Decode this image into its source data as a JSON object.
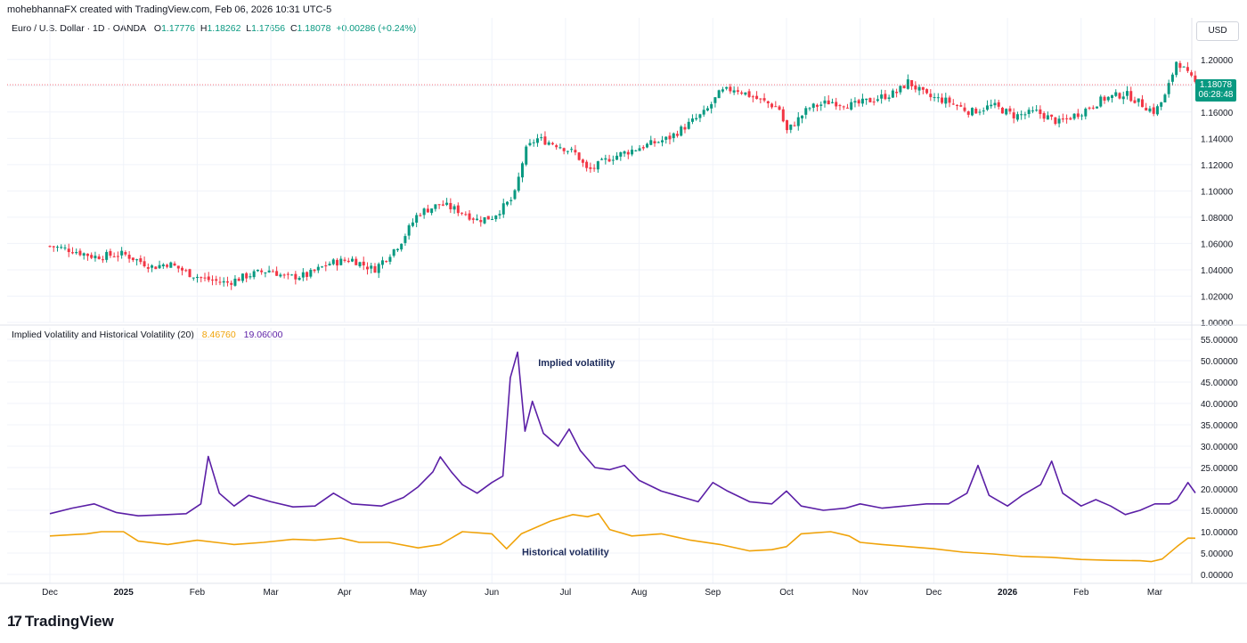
{
  "header": {
    "attribution": "mohebhannaFX created with TradingView.com, Feb 06, 2026 10:31 UTC-5"
  },
  "symbol": {
    "name": "Euro / U.S. Dollar · 1D · OANDA",
    "open_label": "O",
    "open": "1.17776",
    "high_label": "H",
    "high": "1.18262",
    "low_label": "L",
    "low": "1.17656",
    "close_label": "C",
    "close": "1.18078",
    "change": "+0.00286 (+0.24%)"
  },
  "currency_button": "USD",
  "last_price_tag": {
    "price": "1.18078",
    "countdown": "06:28:48"
  },
  "indicator": {
    "name": "Implied Volatility and Historical Volatility (20)",
    "hv_value": "8.46760",
    "iv_value": "19.06000"
  },
  "footer": {
    "brand": "TradingView"
  },
  "colors": {
    "up": "#089981",
    "down": "#f23645",
    "iv": "#5b1fa6",
    "hv": "#f0a30a",
    "grid": "#f0f3fa"
  },
  "chart_data": [
    {
      "type": "candlestick",
      "title": "Euro / U.S. Dollar",
      "ylim": [
        1.0,
        1.21
      ],
      "y_ticks": [
        "1.00000",
        "1.02000",
        "1.04000",
        "1.06000",
        "1.08000",
        "1.10000",
        "1.12000",
        "1.14000",
        "1.16000",
        "1.18000",
        "1.20000"
      ],
      "x_ticks": [
        "Dec",
        "2025",
        "Feb",
        "Mar",
        "Apr",
        "May",
        "Jun",
        "Jul",
        "Aug",
        "Sep",
        "Oct",
        "Nov",
        "Dec",
        "2026",
        "Feb",
        "Mar"
      ],
      "x_tick_months": [
        1,
        2,
        3,
        4,
        5,
        6,
        7,
        8,
        9,
        10,
        11,
        12,
        13,
        14,
        15,
        16
      ],
      "close_path": [
        [
          0.0,
          1.058
        ],
        [
          0.3,
          1.055
        ],
        [
          0.6,
          1.05
        ],
        [
          1.0,
          1.052
        ],
        [
          1.4,
          1.042
        ],
        [
          1.6,
          1.045
        ],
        [
          1.9,
          1.037
        ],
        [
          2.1,
          1.033
        ],
        [
          2.4,
          1.03
        ],
        [
          2.7,
          1.036
        ],
        [
          3.0,
          1.04
        ],
        [
          3.2,
          1.034
        ],
        [
          3.5,
          1.036
        ],
        [
          3.8,
          1.045
        ],
        [
          4.1,
          1.048
        ],
        [
          4.4,
          1.04
        ],
        [
          4.75,
          1.06
        ],
        [
          5.0,
          1.083
        ],
        [
          5.3,
          1.09
        ],
        [
          5.6,
          1.084
        ],
        [
          5.8,
          1.078
        ],
        [
          6.0,
          1.08
        ],
        [
          6.3,
          1.095
        ],
        [
          6.45,
          1.13
        ],
        [
          6.6,
          1.14
        ],
        [
          6.9,
          1.135
        ],
        [
          7.15,
          1.128
        ],
        [
          7.3,
          1.115
        ],
        [
          7.6,
          1.125
        ],
        [
          8.0,
          1.133
        ],
        [
          8.4,
          1.14
        ],
        [
          8.7,
          1.152
        ],
        [
          8.9,
          1.16
        ],
        [
          9.1,
          1.175
        ],
        [
          9.3,
          1.178
        ],
        [
          9.6,
          1.17
        ],
        [
          9.9,
          1.163
        ],
        [
          10.0,
          1.145
        ],
        [
          10.3,
          1.163
        ],
        [
          10.6,
          1.168
        ],
        [
          10.9,
          1.165
        ],
        [
          11.2,
          1.17
        ],
        [
          11.5,
          1.175
        ],
        [
          11.65,
          1.183
        ],
        [
          11.9,
          1.172
        ],
        [
          12.2,
          1.168
        ],
        [
          12.5,
          1.16
        ],
        [
          12.8,
          1.165
        ],
        [
          13.1,
          1.157
        ],
        [
          13.4,
          1.16
        ],
        [
          13.7,
          1.152
        ],
        [
          14.0,
          1.16
        ],
        [
          14.3,
          1.17
        ],
        [
          14.6,
          1.174
        ],
        [
          14.85,
          1.165
        ],
        [
          15.0,
          1.16
        ],
        [
          15.15,
          1.173
        ],
        [
          15.3,
          1.2
        ],
        [
          15.45,
          1.188
        ],
        [
          15.6,
          1.179
        ]
      ]
    },
    {
      "type": "line",
      "title": "Implied Volatility and Historical Volatility (20)",
      "ylim": [
        0,
        55
      ],
      "y_ticks": [
        "0.00000",
        "5.00000",
        "10.00000",
        "15.00000",
        "20.00000",
        "25.00000",
        "30.00000",
        "35.00000",
        "40.00000",
        "45.00000",
        "50.00000",
        "55.00000"
      ],
      "series": [
        {
          "name": "Implied volatility",
          "color": "#5b1fa6",
          "points": [
            [
              0.0,
              14.2
            ],
            [
              0.3,
              15.5
            ],
            [
              0.6,
              16.5
            ],
            [
              0.9,
              14.5
            ],
            [
              1.2,
              13.7
            ],
            [
              1.6,
              14.0
            ],
            [
              1.85,
              14.2
            ],
            [
              2.05,
              16.5
            ],
            [
              2.15,
              27.6
            ],
            [
              2.3,
              19.0
            ],
            [
              2.5,
              16.0
            ],
            [
              2.7,
              18.5
            ],
            [
              3.0,
              17.0
            ],
            [
              3.3,
              15.8
            ],
            [
              3.6,
              16.0
            ],
            [
              3.85,
              19.0
            ],
            [
              4.1,
              16.5
            ],
            [
              4.5,
              16.0
            ],
            [
              4.8,
              18.0
            ],
            [
              5.0,
              20.5
            ],
            [
              5.2,
              24.0
            ],
            [
              5.3,
              27.5
            ],
            [
              5.45,
              24.0
            ],
            [
              5.6,
              21.0
            ],
            [
              5.8,
              19.0
            ],
            [
              6.0,
              21.5
            ],
            [
              6.15,
              23.0
            ],
            [
              6.25,
              46.0
            ],
            [
              6.35,
              52.0
            ],
            [
              6.45,
              33.5
            ],
            [
              6.55,
              40.5
            ],
            [
              6.7,
              33.0
            ],
            [
              6.9,
              30.0
            ],
            [
              7.05,
              34.0
            ],
            [
              7.2,
              29.0
            ],
            [
              7.4,
              25.0
            ],
            [
              7.6,
              24.5
            ],
            [
              7.8,
              25.5
            ],
            [
              8.0,
              22.0
            ],
            [
              8.3,
              19.5
            ],
            [
              8.5,
              18.5
            ],
            [
              8.8,
              17.0
            ],
            [
              9.0,
              21.5
            ],
            [
              9.2,
              19.5
            ],
            [
              9.5,
              17.0
            ],
            [
              9.8,
              16.5
            ],
            [
              10.0,
              19.5
            ],
            [
              10.2,
              16.0
            ],
            [
              10.5,
              15.0
            ],
            [
              10.8,
              15.5
            ],
            [
              11.0,
              16.5
            ],
            [
              11.3,
              15.5
            ],
            [
              11.6,
              16.0
            ],
            [
              11.9,
              16.5
            ],
            [
              12.2,
              16.5
            ],
            [
              12.45,
              19.0
            ],
            [
              12.6,
              25.5
            ],
            [
              12.75,
              18.5
            ],
            [
              12.9,
              17.0
            ],
            [
              13.0,
              16.0
            ],
            [
              13.2,
              18.5
            ],
            [
              13.45,
              21.0
            ],
            [
              13.6,
              26.5
            ],
            [
              13.75,
              19.0
            ],
            [
              14.0,
              16.0
            ],
            [
              14.2,
              17.5
            ],
            [
              14.4,
              16.0
            ],
            [
              14.6,
              14.0
            ],
            [
              14.8,
              15.0
            ],
            [
              15.0,
              16.5
            ],
            [
              15.2,
              16.5
            ],
            [
              15.3,
              17.5
            ],
            [
              15.45,
              21.5
            ],
            [
              15.55,
              19.06
            ]
          ]
        },
        {
          "name": "Historical volatility",
          "color": "#f0a30a",
          "points": [
            [
              0.0,
              9.0
            ],
            [
              0.5,
              9.5
            ],
            [
              0.7,
              10.0
            ],
            [
              1.0,
              10.0
            ],
            [
              1.2,
              7.8
            ],
            [
              1.6,
              7.0
            ],
            [
              2.0,
              8.0
            ],
            [
              2.5,
              7.0
            ],
            [
              2.9,
              7.5
            ],
            [
              3.3,
              8.2
            ],
            [
              3.6,
              8.0
            ],
            [
              3.95,
              8.5
            ],
            [
              4.2,
              7.5
            ],
            [
              4.6,
              7.5
            ],
            [
              5.0,
              6.2
            ],
            [
              5.3,
              7.0
            ],
            [
              5.6,
              10.0
            ],
            [
              6.0,
              9.5
            ],
            [
              6.2,
              6.0
            ],
            [
              6.4,
              9.5
            ],
            [
              6.8,
              12.5
            ],
            [
              7.1,
              14.0
            ],
            [
              7.3,
              13.5
            ],
            [
              7.45,
              14.2
            ],
            [
              7.6,
              10.5
            ],
            [
              7.9,
              9.0
            ],
            [
              8.3,
              9.5
            ],
            [
              8.7,
              8.0
            ],
            [
              9.1,
              7.0
            ],
            [
              9.5,
              5.5
            ],
            [
              9.8,
              5.8
            ],
            [
              10.0,
              6.5
            ],
            [
              10.2,
              9.5
            ],
            [
              10.6,
              10.0
            ],
            [
              10.85,
              9.0
            ],
            [
              11.0,
              7.5
            ],
            [
              11.3,
              7.0
            ],
            [
              11.65,
              6.5
            ],
            [
              12.0,
              6.0
            ],
            [
              12.4,
              5.2
            ],
            [
              12.8,
              4.8
            ],
            [
              13.2,
              4.2
            ],
            [
              13.6,
              4.0
            ],
            [
              14.0,
              3.5
            ],
            [
              14.4,
              3.3
            ],
            [
              14.8,
              3.2
            ],
            [
              14.95,
              3.0
            ],
            [
              15.1,
              3.6
            ],
            [
              15.3,
              6.5
            ],
            [
              15.45,
              8.5
            ],
            [
              15.55,
              8.47
            ]
          ]
        }
      ],
      "annotations": [
        "Implied volatility",
        "Historical volatility"
      ]
    }
  ]
}
